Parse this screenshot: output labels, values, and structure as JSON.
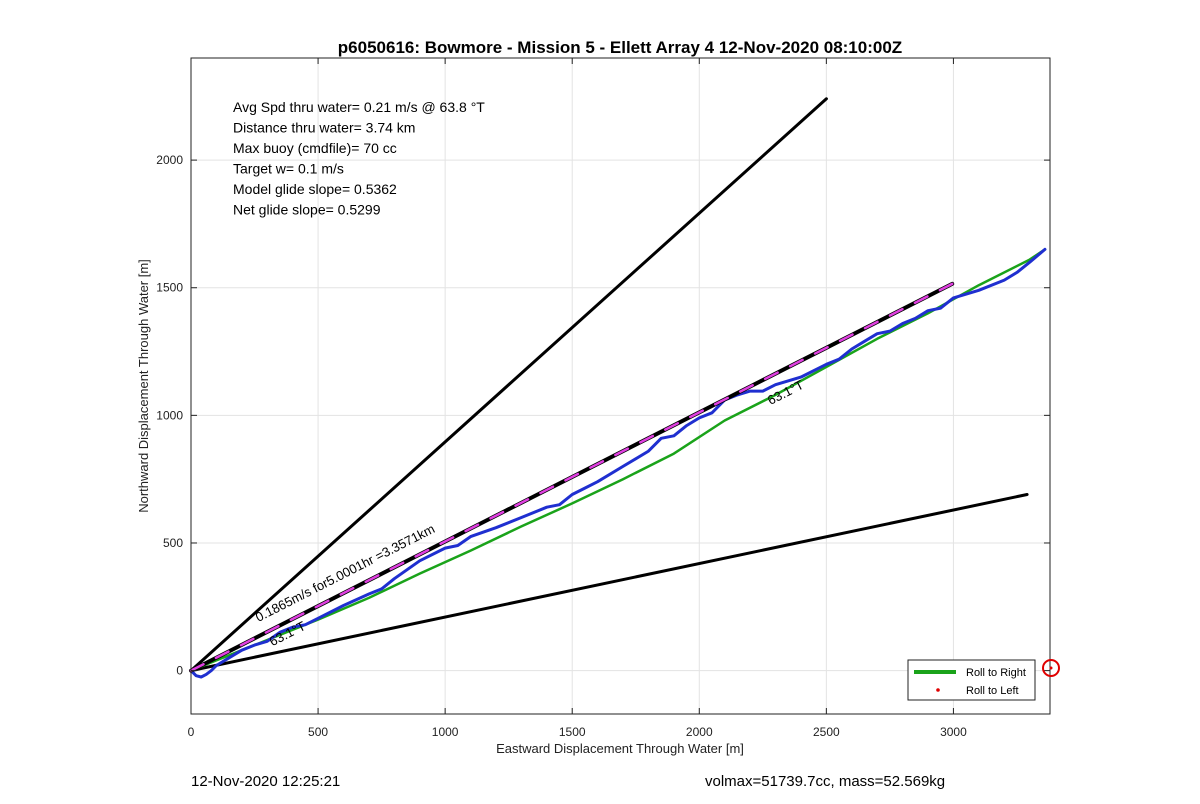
{
  "chart_data": {
    "type": "line",
    "title": "p6050616: Bowmore - Mission 5 - Ellett Array 4 12-Nov-2020 08:10:00Z",
    "xlabel": "Eastward Displacement Through Water [m]",
    "ylabel": "Northward Displacement Through Water [m]",
    "xlim": [
      0,
      3380
    ],
    "ylim": [
      -170,
      2400
    ],
    "xticks": [
      0,
      500,
      1000,
      1500,
      2000,
      2500,
      3000
    ],
    "yticks": [
      0,
      500,
      1000,
      1500,
      2000
    ],
    "grid": true,
    "legend_position": "bottom-right",
    "info_lines": [
      "Avg Spd thru water=  0.21 m/s @  63.8 °T",
      "Distance thru water=  3.74 km",
      "Max buoy (cmdfile)= 70 cc",
      "Target w= 0.1 m/s",
      "Model glide slope= 0.5362",
      "Net glide slope= 0.5299"
    ],
    "annotations": [
      {
        "text": "0.1865m/s for5.0001hr =3.3571km",
        "x": 265,
        "y": 190,
        "angle_deg": 27
      },
      {
        "text": "63.1°T",
        "x": 2280,
        "y": 1040,
        "angle_deg": 27
      },
      {
        "text": "63.1°T",
        "x": 320,
        "y": 95,
        "angle_deg": 27
      }
    ],
    "legend": [
      {
        "label": "Roll to Right",
        "color": "#1aa31a",
        "style": "line"
      },
      {
        "label": "Roll to Left",
        "color": "#e00000",
        "style": "dot"
      }
    ],
    "series": [
      {
        "role": "bound-upper",
        "color": "#000000",
        "x": [
          0,
          2500
        ],
        "y": [
          0,
          2240
        ]
      },
      {
        "role": "bound-lower",
        "color": "#000000",
        "x": [
          0,
          3290
        ],
        "y": [
          0,
          690
        ]
      },
      {
        "role": "vector-black-dash",
        "color": "#000000",
        "x": [
          0,
          2995
        ],
        "y": [
          0,
          1515
        ]
      },
      {
        "role": "vector-magenta-dash",
        "color": "#e040e0",
        "x": [
          0,
          2995
        ],
        "y": [
          0,
          1515
        ]
      },
      {
        "name": "Roll to Right",
        "color": "#1aa31a",
        "x": [
          0,
          100,
          200,
          300,
          500,
          700,
          900,
          1100,
          1300,
          1500,
          1700,
          1900,
          2100,
          2300,
          2500,
          2700,
          2900,
          3100,
          3300,
          3360
        ],
        "y": [
          0,
          40,
          80,
          120,
          200,
          285,
          380,
          470,
          565,
          655,
          750,
          850,
          980,
          1080,
          1190,
          1300,
          1400,
          1510,
          1610,
          1650
        ]
      },
      {
        "role": "track",
        "color": "#1f2fd0",
        "x": [
          0,
          20,
          40,
          60,
          80,
          100,
          150,
          200,
          250,
          300,
          350,
          400,
          450,
          500,
          600,
          700,
          750,
          800,
          900,
          1000,
          1050,
          1100,
          1200,
          1300,
          1400,
          1450,
          1500,
          1550,
          1600,
          1700,
          1800,
          1850,
          1900,
          1950,
          2000,
          2050,
          2100,
          2150,
          2200,
          2250,
          2300,
          2400,
          2500,
          2550,
          2600,
          2650,
          2700,
          2750,
          2800,
          2850,
          2900,
          2950,
          3000,
          3100,
          3200,
          3250,
          3300,
          3360
        ],
        "y": [
          0,
          -20,
          -25,
          -15,
          0,
          20,
          50,
          80,
          100,
          115,
          150,
          170,
          180,
          205,
          255,
          300,
          320,
          360,
          430,
          480,
          490,
          525,
          560,
          600,
          640,
          650,
          690,
          715,
          740,
          800,
          860,
          910,
          920,
          960,
          990,
          1010,
          1060,
          1080,
          1095,
          1095,
          1120,
          1150,
          1200,
          1220,
          1260,
          1290,
          1320,
          1330,
          1360,
          1380,
          1410,
          1420,
          1460,
          1490,
          1530,
          1560,
          1600,
          1650
        ]
      }
    ]
  },
  "footer": {
    "timestamp": "12-Nov-2020 12:25:21",
    "stats": "volmax=51739.7cc, mass=52.569kg"
  }
}
